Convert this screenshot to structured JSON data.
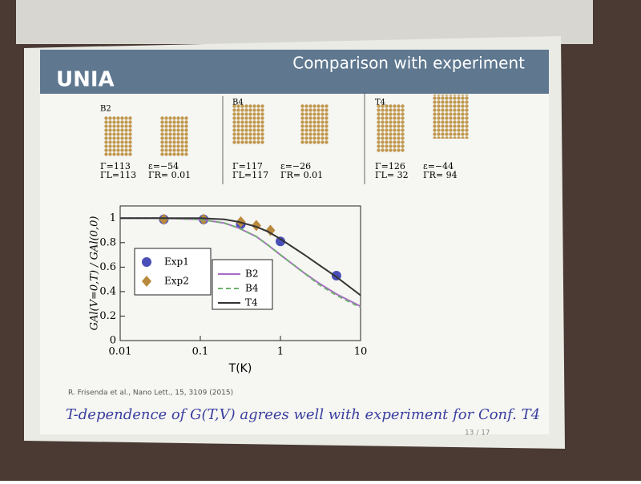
{
  "header": {
    "logo": "UNIA",
    "title": "Comparison with experiment"
  },
  "structures": [
    {
      "label": "B2",
      "params": [
        "Γ=113",
        "ΓL=113",
        "ε=−54",
        "ΓR= 0.01"
      ]
    },
    {
      "label": "B4",
      "params": [
        "Γ=117",
        "ΓL=117",
        "ε=−26",
        "ΓR= 0.01"
      ]
    },
    {
      "label": "T4",
      "params": [
        "Γ=126",
        "ΓL= 32",
        "ε=−44",
        "ΓR= 94"
      ]
    }
  ],
  "chart_data": {
    "type": "line",
    "x_label": "T(K)",
    "y_label": "GAl(V=0,T) / GAl(0,0)",
    "xlim": [
      0.01,
      10
    ],
    "xticks": [
      0.01,
      0.1,
      1,
      10
    ],
    "xscale": "log",
    "ylim": [
      0,
      1.1
    ],
    "yticks": [
      0,
      0.2,
      0.4,
      0.6,
      0.8,
      1
    ],
    "series": [
      {
        "name": "Exp1",
        "type": "scatter",
        "marker": "circle",
        "color": "#4a4fb8",
        "x": [
          0.035,
          0.11,
          0.32,
          1,
          5
        ],
        "values": [
          0.99,
          0.99,
          0.95,
          0.81,
          0.53
        ]
      },
      {
        "name": "Exp2",
        "type": "scatter",
        "marker": "diamond",
        "color": "#b98a3e",
        "x": [
          0.035,
          0.11,
          0.32,
          0.5,
          0.75
        ],
        "values": [
          0.99,
          0.99,
          0.97,
          0.94,
          0.9
        ]
      },
      {
        "name": "B2",
        "type": "line",
        "color": "#a86cc8",
        "x": [
          0.01,
          0.03,
          0.1,
          0.2,
          0.3,
          0.5,
          0.7,
          1,
          2,
          3,
          5,
          10
        ],
        "values": [
          1,
          1,
          0.99,
          0.96,
          0.92,
          0.85,
          0.78,
          0.7,
          0.55,
          0.47,
          0.38,
          0.28
        ]
      },
      {
        "name": "B4",
        "type": "line",
        "dash": true,
        "color": "#6fae6f",
        "x": [
          0.01,
          0.03,
          0.1,
          0.2,
          0.3,
          0.5,
          0.7,
          1,
          2,
          3,
          5,
          10
        ],
        "values": [
          1,
          1,
          0.99,
          0.96,
          0.92,
          0.85,
          0.78,
          0.7,
          0.55,
          0.46,
          0.37,
          0.27
        ]
      },
      {
        "name": "T4",
        "type": "line",
        "color": "#333333",
        "x": [
          0.01,
          0.03,
          0.1,
          0.2,
          0.3,
          0.5,
          0.7,
          1,
          2,
          3,
          5,
          10
        ],
        "values": [
          1,
          1,
          1,
          0.99,
          0.97,
          0.93,
          0.89,
          0.83,
          0.7,
          0.62,
          0.52,
          0.37
        ]
      }
    ]
  },
  "citation": "R. Frisenda et al., Nano Lett., 15, 3109 (2015)",
  "caption": "T-dependence of G(T,V) agrees well with experiment for Conf. T4",
  "page": "13 / 17"
}
